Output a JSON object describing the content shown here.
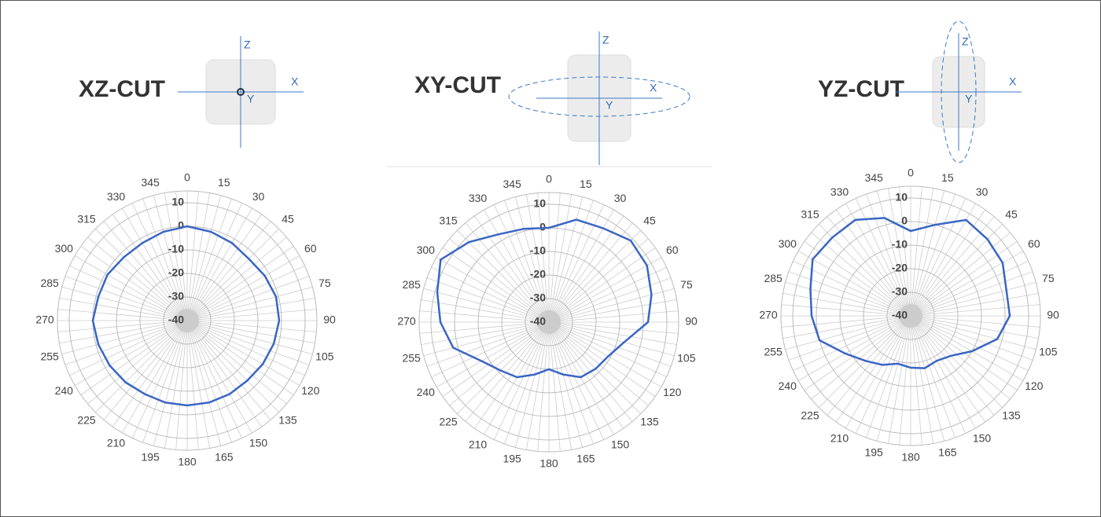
{
  "chart_data": [
    {
      "type": "polar",
      "title": "XZ-CUT",
      "illustration_labels": [
        "Z",
        "X",
        "Y"
      ],
      "theta": [
        0,
        15,
        30,
        45,
        60,
        75,
        90,
        105,
        120,
        135,
        150,
        165,
        180,
        195,
        210,
        225,
        240,
        255,
        270,
        285,
        300,
        315,
        330,
        345
      ],
      "values": [
        0,
        -1,
        -2,
        -3,
        -2,
        -1,
        -1,
        -2,
        -3,
        -4,
        -4,
        -4,
        -4,
        -4,
        -4,
        -3,
        -2,
        -1,
        0,
        -1,
        -1,
        -2,
        -2,
        -1
      ],
      "color": "#3a66c4",
      "rlim": [
        -40,
        15
      ],
      "rticks": [
        10,
        0,
        -10,
        -20,
        -30,
        -40
      ],
      "grid": true
    },
    {
      "type": "polar",
      "title": "XY-CUT",
      "illustration_labels": [
        "Z",
        "X",
        "Y"
      ],
      "theta": [
        0,
        15,
        30,
        45,
        60,
        75,
        90,
        105,
        120,
        135,
        150,
        165,
        180,
        195,
        210,
        225,
        240,
        255,
        270,
        285,
        300,
        315,
        330,
        345
      ],
      "values": [
        0,
        5,
        6,
        9,
        8,
        5,
        2,
        -7,
        -11,
        -12,
        -13,
        -17,
        -20,
        -17,
        -13,
        -11,
        -7,
        2,
        6,
        9,
        13,
        8,
        3,
        1
      ],
      "color": "#3a66c4",
      "rlim": [
        -40,
        15
      ],
      "rticks": [
        10,
        0,
        -10,
        -20,
        -30,
        -40
      ],
      "grid": true
    },
    {
      "type": "polar",
      "title": "YZ-CUT",
      "illustration_labels": [
        "Z",
        "X",
        "Y"
      ],
      "theta": [
        0,
        15,
        30,
        45,
        60,
        75,
        90,
        105,
        120,
        135,
        150,
        165,
        180,
        195,
        210,
        225,
        240,
        255,
        270,
        285,
        300,
        315,
        330,
        345
      ],
      "values": [
        -4,
        0,
        7,
        6,
        5,
        2,
        2,
        -2,
        -10,
        -16,
        -18,
        -17,
        -18,
        -19,
        -16,
        -13,
        -8,
        0,
        2,
        4,
        8,
        7,
        7,
        3
      ],
      "color": "#3a66c4",
      "rlim": [
        -40,
        15
      ],
      "rticks": [
        10,
        0,
        -10,
        -20,
        -30,
        -40
      ],
      "grid": true
    }
  ]
}
